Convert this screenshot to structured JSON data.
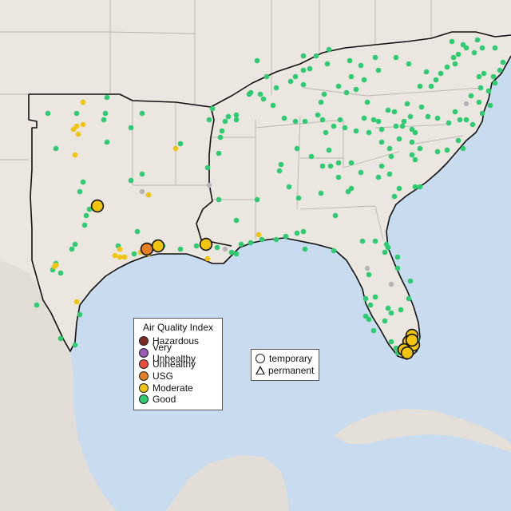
{
  "colors": {
    "ocean": "#c9dcef",
    "land": "#ebe6e0",
    "land_mexico": "#e2ddd6",
    "cuba": "#e4dfd8",
    "state_border": "#b9b4ae",
    "region_border": "#111111",
    "coast": "#111111"
  },
  "aqi_legend": {
    "title": "Air Quality Index",
    "items": [
      {
        "label": "Hazardous",
        "color": "#7e2a22"
      },
      {
        "label": "Very Unhealthy",
        "color": "#9b59b6"
      },
      {
        "label": "Unhealthy",
        "color": "#e74c3c"
      },
      {
        "label": "USG",
        "color": "#e67e22"
      },
      {
        "label": "Moderate",
        "color": "#f1c40f"
      },
      {
        "label": "Good",
        "color": "#2ecc71"
      }
    ]
  },
  "type_legend": {
    "items": [
      {
        "label": "temporary",
        "shape": "circle"
      },
      {
        "label": "permanent",
        "shape": "triangle"
      }
    ]
  },
  "monitors": {
    "good_count_approx": 230,
    "moderate_small_count_approx": 20,
    "large_highlighted": [
      {
        "category": "Moderate",
        "place": "Central Texas"
      },
      {
        "category": "USG",
        "place": "Houston"
      },
      {
        "category": "Moderate",
        "place": "Houston"
      },
      {
        "category": "Moderate",
        "place": "Baton Rouge"
      },
      {
        "category": "Moderate",
        "place": "Miami / Fort Lauderdale"
      }
    ],
    "gray_no_data_count_approx": 6
  }
}
